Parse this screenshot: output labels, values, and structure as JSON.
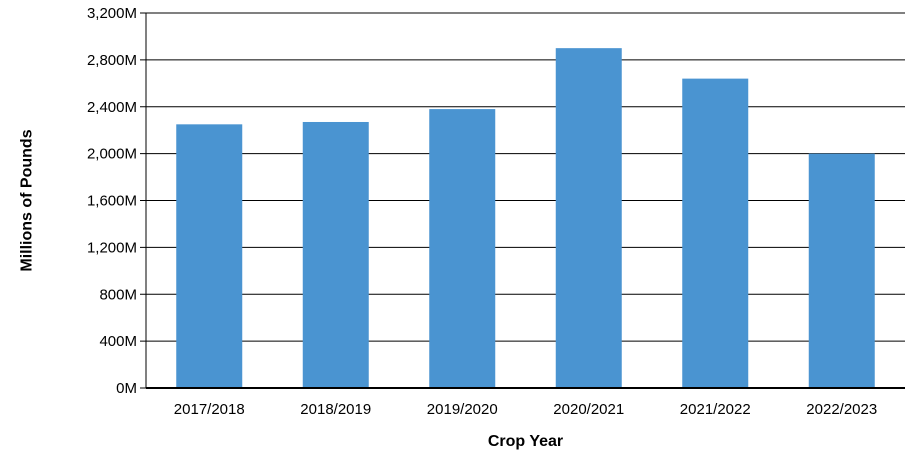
{
  "chart_data": {
    "type": "bar",
    "title": "",
    "xlabel": "Crop Year",
    "ylabel": "Millions of Pounds",
    "categories": [
      "2017/2018",
      "2018/2019",
      "2019/2020",
      "2020/2021",
      "2021/2022",
      "2022/2023"
    ],
    "series": [
      {
        "values": [
          2250,
          2270,
          2380,
          2900,
          2640,
          2000
        ]
      }
    ],
    "ylim": [
      0,
      3200
    ],
    "y_ticks": [
      0,
      400,
      800,
      1200,
      1600,
      2000,
      2400,
      2800,
      3200
    ],
    "y_tick_labels": [
      "0M",
      "400M",
      "800M",
      "1,200M",
      "1,600M",
      "2,000M",
      "2,400M",
      "2,800M",
      "3,200M"
    ],
    "grid": true,
    "legend": "none",
    "bar_color": "#4a94d1"
  }
}
